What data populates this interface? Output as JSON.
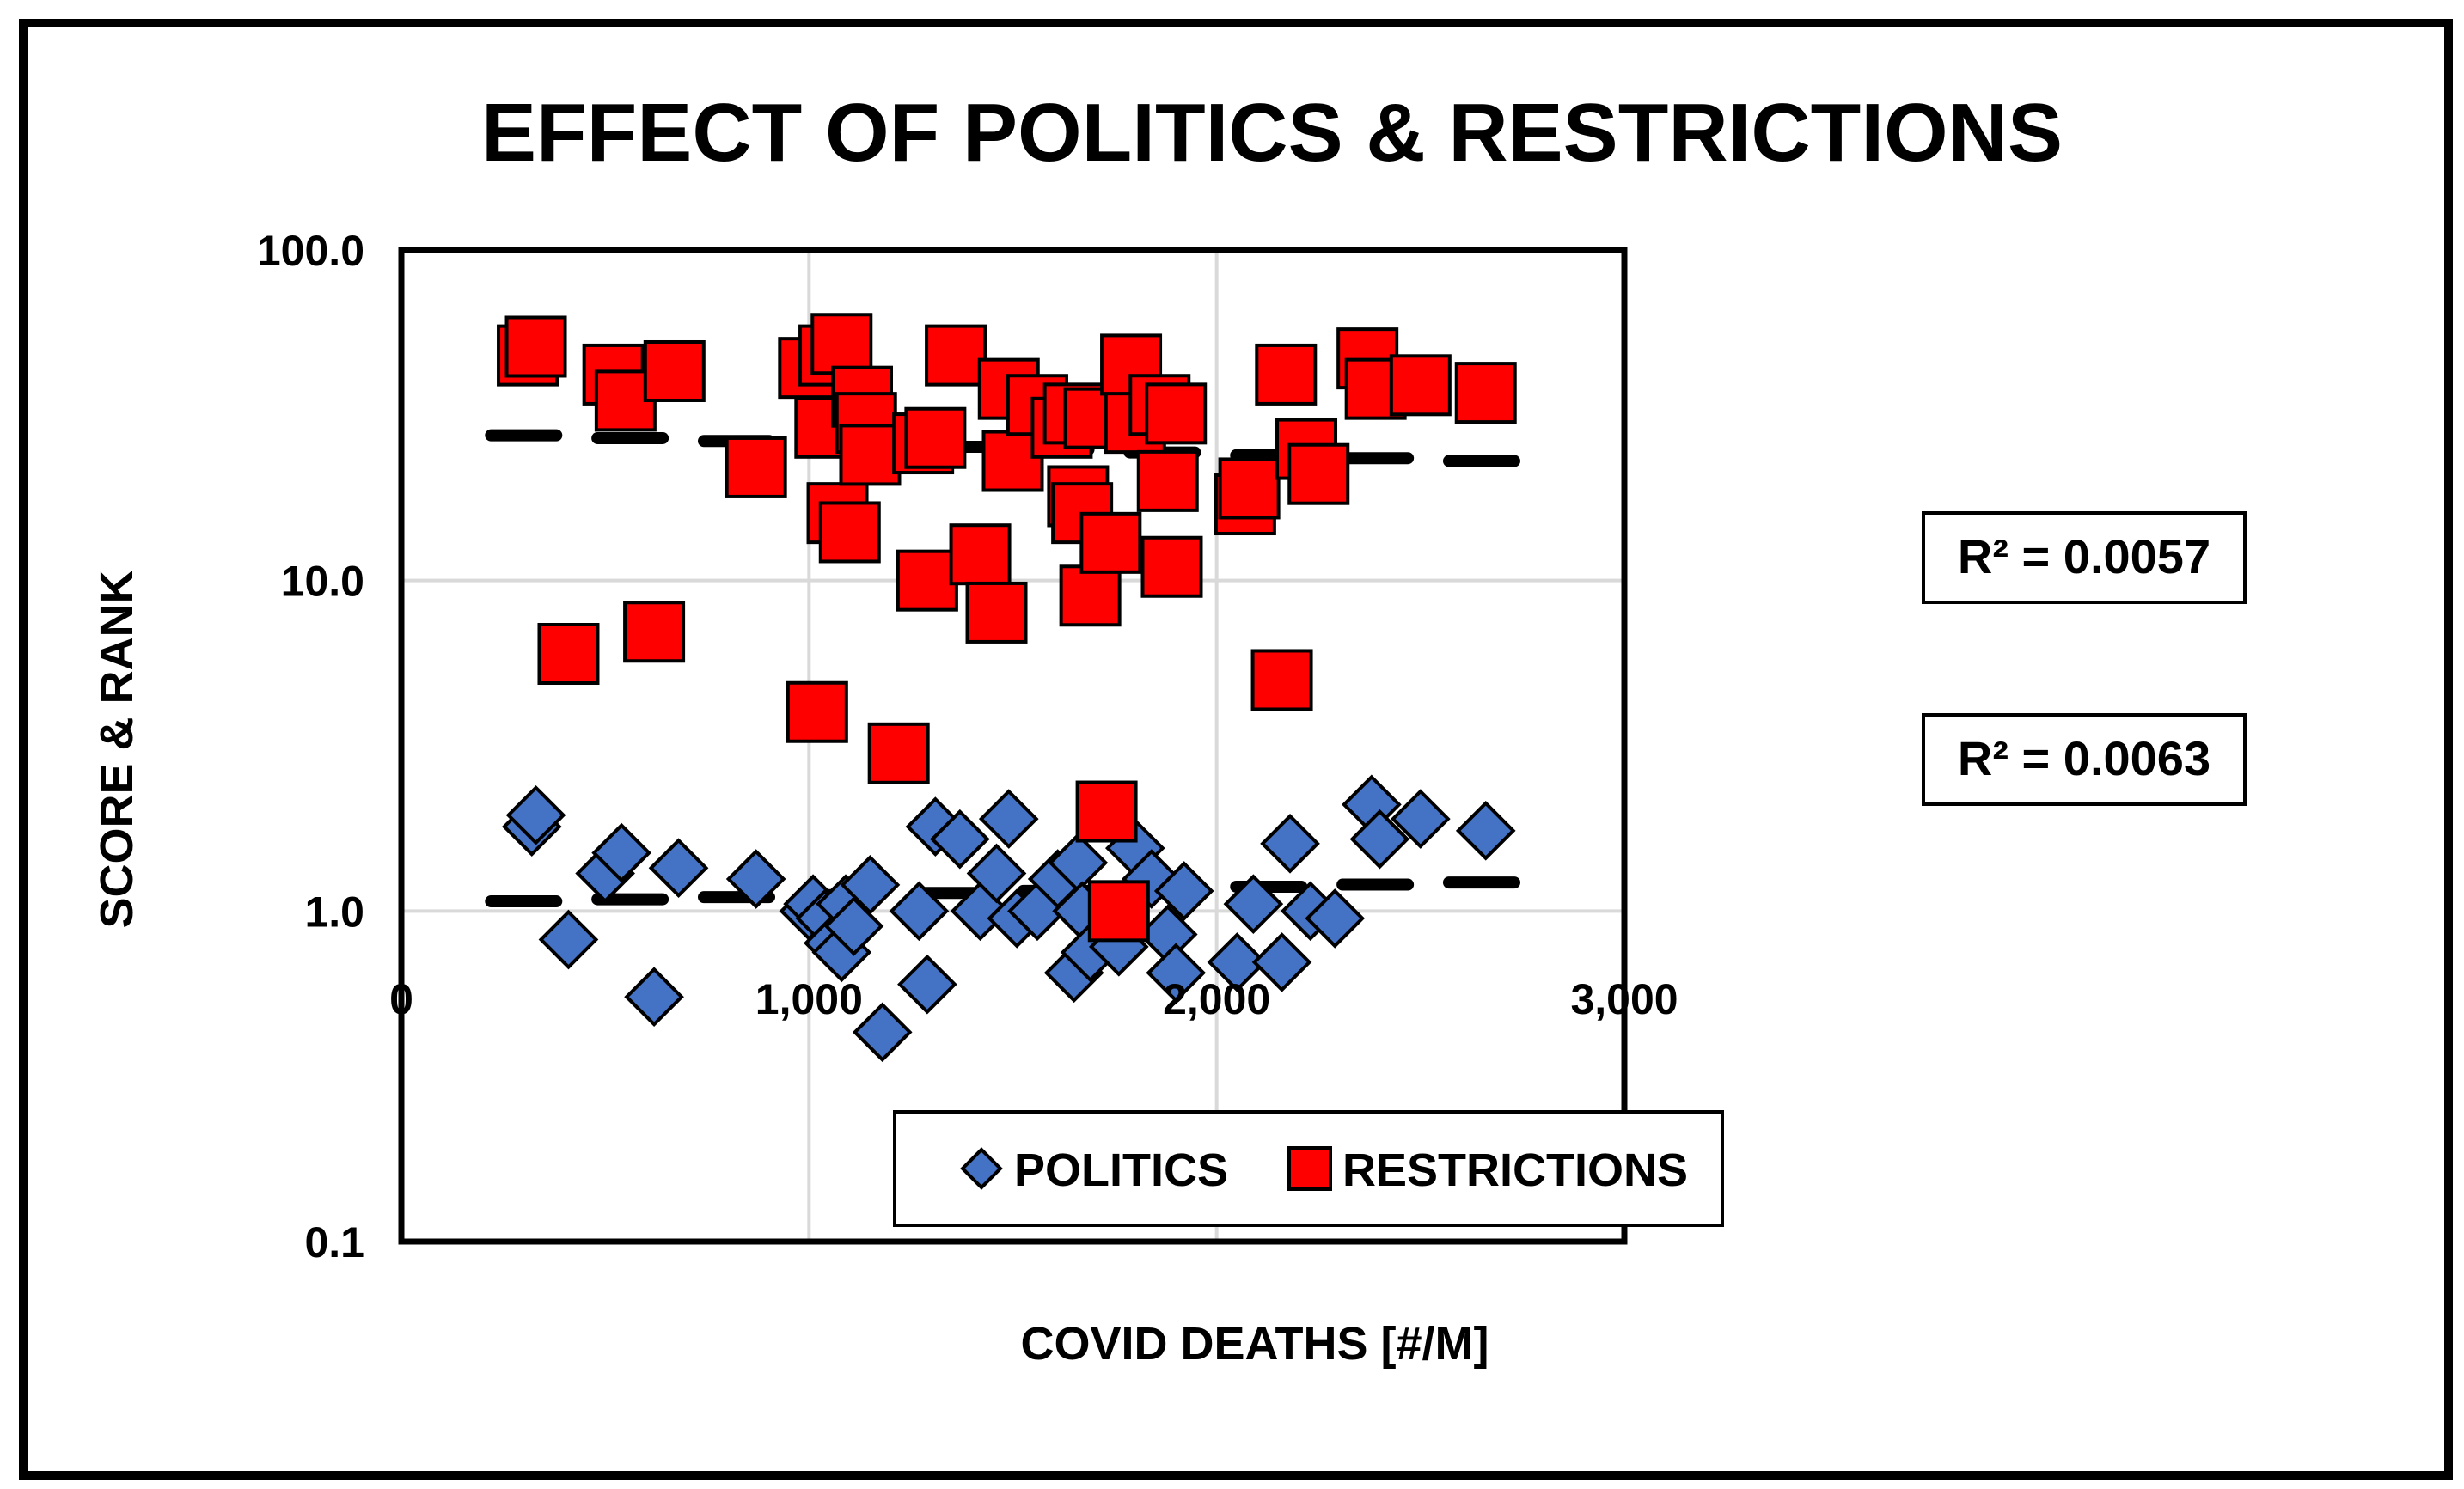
{
  "chart_data": {
    "type": "scatter",
    "title": "EFFECT OF POLITICS & RESTRICTIONS",
    "xlabel": "COVID DEATHS [#/M]",
    "ylabel": "SCORE & RANK",
    "xlim": [
      0,
      3000
    ],
    "ylim": [
      0.1,
      100
    ],
    "y_scale": "log",
    "x_ticks": [
      0,
      1000,
      2000,
      3000
    ],
    "x_tick_labels": [
      "0",
      "1,000",
      "2,000",
      "3,000"
    ],
    "y_ticks": [
      0.1,
      1,
      10,
      100
    ],
    "y_tick_labels": [
      "0.1",
      "1.0",
      "10.0",
      "100.0"
    ],
    "grid": true,
    "legend_position": "bottom-center",
    "series": [
      {
        "name": "POLITICS",
        "marker": "diamond",
        "color": "#4472C4",
        "r2_label": "R² = 0.0063",
        "trend": [
          [
            300,
            1.07
          ],
          [
            2650,
            1.22
          ]
        ],
        "points": [
          [
            320,
            1.8
          ],
          [
            330,
            1.95
          ],
          [
            410,
            0.82
          ],
          [
            500,
            1.3
          ],
          [
            540,
            1.5
          ],
          [
            620,
            0.55
          ],
          [
            680,
            1.35
          ],
          [
            870,
            1.25
          ],
          [
            1000,
            1.0
          ],
          [
            1010,
            1.05
          ],
          [
            1040,
            0.95
          ],
          [
            1060,
            0.8
          ],
          [
            1080,
            0.75
          ],
          [
            1090,
            1.05
          ],
          [
            1110,
            0.9
          ],
          [
            1150,
            1.2
          ],
          [
            1180,
            0.43
          ],
          [
            1270,
            1.0
          ],
          [
            1290,
            0.6
          ],
          [
            1310,
            1.8
          ],
          [
            1370,
            1.65
          ],
          [
            1420,
            1.0
          ],
          [
            1460,
            1.3
          ],
          [
            1490,
            1.9
          ],
          [
            1510,
            0.95
          ],
          [
            1560,
            1.0
          ],
          [
            1610,
            1.25
          ],
          [
            1650,
            0.65
          ],
          [
            1660,
            1.4
          ],
          [
            1670,
            1.0
          ],
          [
            1690,
            0.75
          ],
          [
            1760,
            0.78
          ],
          [
            1800,
            1.55
          ],
          [
            1840,
            1.25
          ],
          [
            1880,
            0.85
          ],
          [
            1900,
            0.65
          ],
          [
            1920,
            1.15
          ],
          [
            2050,
            0.7
          ],
          [
            2090,
            1.05
          ],
          [
            2160,
            0.7
          ],
          [
            2180,
            1.6
          ],
          [
            2230,
            1.0
          ],
          [
            2290,
            0.95
          ],
          [
            2380,
            2.1
          ],
          [
            2400,
            1.65
          ],
          [
            2500,
            1.9
          ],
          [
            2660,
            1.75
          ]
        ]
      },
      {
        "name": "RESTRICTIONS",
        "marker": "square",
        "color": "#FF0000",
        "r2_label": "R² = 0.0057",
        "trend": [
          [
            300,
            27.5
          ],
          [
            2650,
            23.0
          ]
        ],
        "points": [
          [
            310,
            48
          ],
          [
            330,
            51
          ],
          [
            410,
            6
          ],
          [
            520,
            42
          ],
          [
            550,
            35
          ],
          [
            620,
            7
          ],
          [
            670,
            43
          ],
          [
            870,
            22
          ],
          [
            1000,
            44
          ],
          [
            1020,
            4
          ],
          [
            1040,
            29
          ],
          [
            1050,
            48
          ],
          [
            1070,
            16
          ],
          [
            1080,
            52
          ],
          [
            1100,
            14
          ],
          [
            1130,
            36
          ],
          [
            1140,
            30
          ],
          [
            1150,
            24
          ],
          [
            1220,
            3
          ],
          [
            1280,
            26
          ],
          [
            1290,
            10
          ],
          [
            1310,
            27
          ],
          [
            1360,
            48
          ],
          [
            1420,
            12
          ],
          [
            1460,
            8
          ],
          [
            1490,
            38
          ],
          [
            1500,
            23
          ],
          [
            1560,
            34
          ],
          [
            1620,
            29
          ],
          [
            1650,
            32
          ],
          [
            1660,
            18
          ],
          [
            1670,
            16
          ],
          [
            1690,
            9
          ],
          [
            1700,
            31
          ],
          [
            1730,
            2
          ],
          [
            1740,
            13
          ],
          [
            1760,
            1.0
          ],
          [
            1790,
            45
          ],
          [
            1800,
            30
          ],
          [
            1860,
            34
          ],
          [
            1880,
            20
          ],
          [
            1890,
            11
          ],
          [
            1900,
            32
          ],
          [
            2070,
            17
          ],
          [
            2080,
            19
          ],
          [
            2160,
            5
          ],
          [
            2170,
            42
          ],
          [
            2220,
            25
          ],
          [
            2250,
            21
          ],
          [
            2370,
            47
          ],
          [
            2390,
            38
          ],
          [
            2500,
            39
          ],
          [
            2660,
            37
          ]
        ]
      }
    ]
  }
}
